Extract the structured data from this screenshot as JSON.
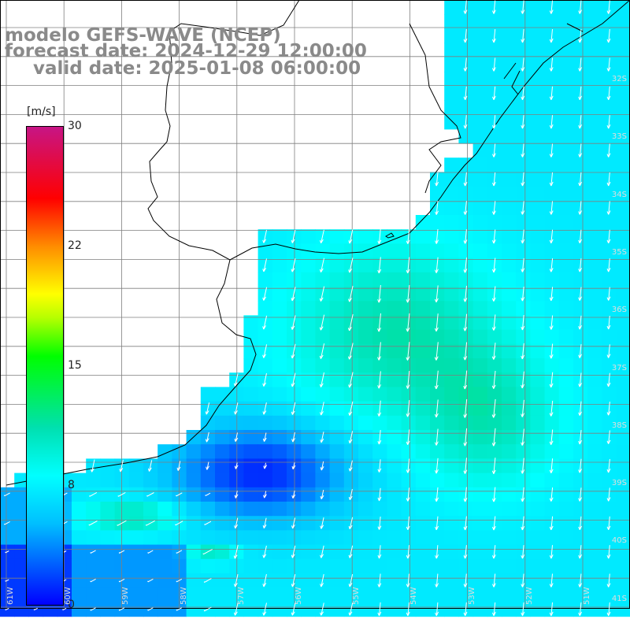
{
  "title": {
    "model": "modelo GEFS-WAVE (NCEP)",
    "forecast": "forecast date: 2024-12-29 12:00:00",
    "valid": "valid date: 2025-01-08 06:00:00"
  },
  "colorbar": {
    "unit": "[m/s]",
    "ticks": [
      "30",
      "22",
      "15",
      "8",
      "0"
    ],
    "range": [
      0,
      30
    ],
    "colors": [
      "#0000ff",
      "#00bfff",
      "#00ffff",
      "#00ff00",
      "#ffff00",
      "#ff8c00",
      "#ff0000",
      "#c71585"
    ]
  },
  "lat_labels": [
    "32S",
    "33S",
    "34S",
    "35S",
    "36S",
    "37S",
    "38S",
    "39S",
    "40S",
    "41S"
  ],
  "lon_labels": [
    "61W",
    "60W",
    "59W",
    "58W",
    "57W",
    "56W",
    "55W",
    "54W",
    "53W",
    "52W",
    "51W"
  ],
  "colors": {
    "land": "#ffffff",
    "grid": "#7f7f7f",
    "coast": "#000000",
    "arrow": "#ffffff"
  }
}
